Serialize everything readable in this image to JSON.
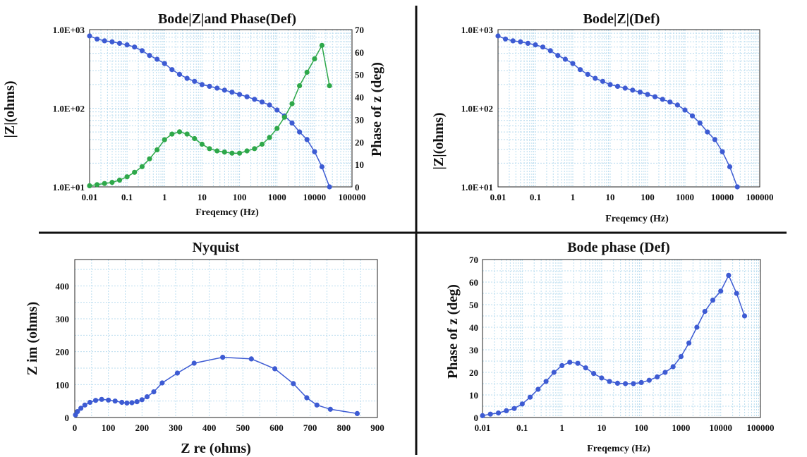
{
  "colors": {
    "blue": "#3d5bd3",
    "green": "#2ea84a",
    "grid": "#b9dcef"
  },
  "chart_data": [
    {
      "type": "line",
      "title": "Bode|Z|and Phase(Def)",
      "xlabel": "Freqemcy (Hz)",
      "ylabel": "|Z|(ohms)",
      "y2label": "Phase of z (deg)",
      "xscale": "log",
      "yscale": "log",
      "xlim": [
        0.01,
        100000
      ],
      "ylim": [
        10,
        1000
      ],
      "y2lim": [
        0,
        70
      ],
      "xticks": [
        "0.01",
        "0.1",
        "1",
        "10",
        "100",
        "1000",
        "10000",
        "100000"
      ],
      "yticks": [
        "1.0E+01",
        "1.0E+02",
        "1.0E+03"
      ],
      "y2ticks": [
        "0",
        "10",
        "20",
        "30",
        "40",
        "50",
        "60",
        "70"
      ],
      "grid": true,
      "x": [
        0.01,
        0.0158,
        0.0251,
        0.0398,
        0.0631,
        0.1,
        0.158,
        0.251,
        0.398,
        0.631,
        1,
        1.58,
        2.51,
        3.98,
        6.31,
        10,
        15.8,
        25.1,
        39.8,
        63.1,
        100,
        158,
        251,
        398,
        631,
        1000,
        1580,
        2510,
        3980,
        6310,
        10000,
        15800,
        25100
      ],
      "series": [
        {
          "axis": "left",
          "color": "#3d5bd3",
          "values": [
            830,
            760,
            720,
            700,
            670,
            640,
            600,
            540,
            470,
            420,
            370,
            310,
            270,
            240,
            220,
            200,
            190,
            180,
            170,
            160,
            150,
            140,
            130,
            120,
            110,
            95,
            80,
            65,
            50,
            40,
            28,
            18,
            10
          ]
        },
        {
          "axis": "right",
          "color": "#2ea84a",
          "values": [
            0.5,
            1,
            1.5,
            2,
            3,
            4.5,
            6.5,
            9,
            12.5,
            16.5,
            21,
            23.5,
            24.5,
            23.5,
            21.5,
            19,
            17,
            16,
            15.5,
            15,
            15,
            16,
            17,
            19,
            22,
            26,
            31,
            37,
            45,
            51,
            57,
            63,
            45
          ]
        }
      ]
    },
    {
      "type": "line",
      "title": "Bode|Z|(Def)",
      "xlabel": "Freqemcy (Hz)",
      "ylabel": "|Z|(ohms)",
      "xscale": "log",
      "yscale": "log",
      "xlim": [
        0.01,
        100000
      ],
      "ylim": [
        10,
        1000
      ],
      "xticks": [
        "0.01",
        "0.1",
        "1",
        "10",
        "100",
        "1000",
        "10000",
        "100000"
      ],
      "yticks": [
        "1.0E+01",
        "1.0E+02",
        "1.0E+03"
      ],
      "grid": true,
      "x": [
        0.01,
        0.0158,
        0.0251,
        0.0398,
        0.0631,
        0.1,
        0.158,
        0.251,
        0.398,
        0.631,
        1,
        1.58,
        2.51,
        3.98,
        6.31,
        10,
        15.8,
        25.1,
        39.8,
        63.1,
        100,
        158,
        251,
        398,
        631,
        1000,
        1580,
        2510,
        3980,
        6310,
        10000,
        15800,
        25100
      ],
      "series": [
        {
          "color": "#3d5bd3",
          "values": [
            830,
            760,
            720,
            700,
            670,
            640,
            600,
            540,
            470,
            420,
            370,
            310,
            270,
            240,
            220,
            200,
            190,
            180,
            170,
            160,
            150,
            140,
            130,
            120,
            110,
            95,
            80,
            65,
            50,
            40,
            28,
            18,
            10
          ]
        }
      ]
    },
    {
      "type": "scatter",
      "title": "Nyquist",
      "xlabel": "Z re (ohms)",
      "ylabel": "Z im (ohms)",
      "xlim": [
        0,
        900
      ],
      "ylim": [
        0,
        480
      ],
      "xticks": [
        "0",
        "100",
        "200",
        "300",
        "400",
        "500",
        "600",
        "700",
        "800",
        "900"
      ],
      "yticks": [
        "0",
        "100",
        "200",
        "300",
        "400"
      ],
      "grid": true,
      "series": [
        {
          "color": "#3d5bd3",
          "x": [
            2,
            8,
            18,
            30,
            45,
            62,
            80,
            100,
            120,
            140,
            155,
            170,
            185,
            200,
            215,
            235,
            260,
            305,
            355,
            440,
            525,
            595,
            650,
            690,
            720,
            760,
            840
          ],
          "y": [
            8,
            18,
            28,
            38,
            46,
            52,
            55,
            53,
            50,
            46,
            44,
            45,
            48,
            54,
            63,
            78,
            105,
            135,
            165,
            183,
            178,
            148,
            103,
            60,
            38,
            25,
            12
          ]
        }
      ]
    },
    {
      "type": "line",
      "title": "Bode phase (Def)",
      "xlabel": "Freqemcy (Hz)",
      "ylabel": "Phase of z (deg)",
      "xscale": "log",
      "xlim": [
        0.01,
        100000
      ],
      "ylim": [
        0,
        70
      ],
      "xticks": [
        "0.01",
        "0.1",
        "1",
        "10",
        "100",
        "1000",
        "10000",
        "100000"
      ],
      "yticks": [
        "0",
        "10",
        "20",
        "30",
        "40",
        "50",
        "60",
        "70"
      ],
      "grid": true,
      "x": [
        0.01,
        0.0158,
        0.0251,
        0.0398,
        0.0631,
        0.1,
        0.158,
        0.251,
        0.398,
        0.631,
        1,
        1.58,
        2.51,
        3.98,
        6.31,
        10,
        15.8,
        25.1,
        39.8,
        63.1,
        100,
        158,
        251,
        398,
        631,
        1000,
        1580,
        2510,
        3980,
        6310,
        10000,
        15800,
        25100,
        39800
      ],
      "series": [
        {
          "color": "#3d5bd3",
          "values": [
            0.8,
            1.5,
            2,
            3,
            4,
            6,
            9,
            12.5,
            16,
            20,
            23,
            24.5,
            24,
            22,
            19.5,
            17.5,
            16,
            15.2,
            15,
            15,
            15.5,
            16.5,
            18,
            20,
            22.5,
            27,
            33,
            40,
            47,
            52,
            56,
            63,
            55,
            45
          ]
        }
      ]
    }
  ]
}
